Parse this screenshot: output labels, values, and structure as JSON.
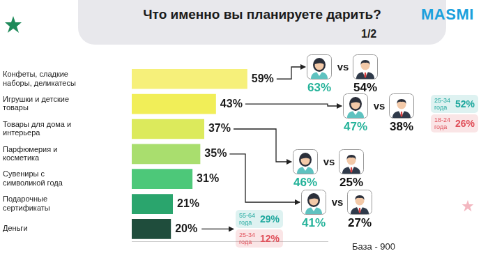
{
  "chart_data": {
    "type": "bar",
    "orientation": "horizontal",
    "title": "Что именно вы планируете дарить?",
    "subtitle": "1/2",
    "brand": "MASMI",
    "categories": [
      "Конфеты, сладкие наборы, деликатесы",
      "Игрушки и детские товары",
      "Товары для дома и интерьера",
      "Парфюмерия и косметика",
      "Сувениры с символикой года",
      "Подарочные сертификаты",
      "Деньги"
    ],
    "values": [
      59,
      43,
      37,
      35,
      31,
      21,
      20
    ],
    "value_labels": [
      "59%",
      "43%",
      "37%",
      "35%",
      "31%",
      "21%",
      "20%"
    ],
    "colors": [
      "#f6f07a",
      "#f1ee58",
      "#dcea5c",
      "#a9de6e",
      "#4dc879",
      "#2aa56d",
      "#1f4d3c"
    ],
    "xlim": [
      0,
      100
    ],
    "grid": false,
    "data_labels": true,
    "tick_labels": "y",
    "vs": "vs",
    "gender_comparisons": [
      {
        "category": "Конфеты, сладкие наборы, деликатесы",
        "women": "63%",
        "men": "54%"
      },
      {
        "category": "Игрушки и детские товары",
        "women": "47%",
        "men": "38%"
      },
      {
        "category": "Товары для дома и интерьера",
        "women": "46%",
        "men": "25%"
      },
      {
        "category": "Парфюмерия и косметика",
        "women": "41%",
        "men": "27%"
      }
    ],
    "age_breakdowns": [
      {
        "category": "Игрушки и детские товары",
        "groups": [
          {
            "label": "25-34 года",
            "value": "52%",
            "color": "#1fa89e"
          },
          {
            "label": "18-24 года",
            "value": "26%",
            "color": "#e0505a"
          }
        ]
      },
      {
        "category": "Деньги",
        "groups": [
          {
            "label": "55-64 года",
            "value": "29%",
            "color": "#1fa89e"
          },
          {
            "label": "25-34 года",
            "value": "12%",
            "color": "#e0505a"
          }
        ]
      }
    ],
    "base": "База - 900"
  }
}
